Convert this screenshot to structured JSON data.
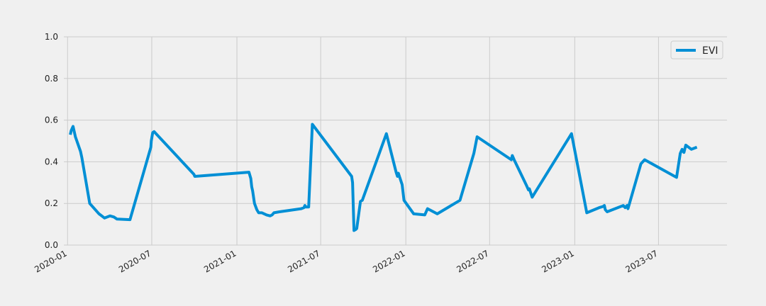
{
  "chart_data": {
    "type": "line",
    "title": "",
    "xlabel": "",
    "ylabel": "",
    "ylim": [
      0.0,
      1.0
    ],
    "xlim": [
      "2019-12-24",
      "2023-11-26"
    ],
    "grid": true,
    "legend_position": "top-right",
    "y_ticks": [
      "0.0",
      "0.2",
      "0.4",
      "0.6",
      "0.8",
      "1.0"
    ],
    "x_ticks": [
      "2020-01",
      "2020-07",
      "2021-01",
      "2021-07",
      "2022-01",
      "2022-07",
      "2023-01",
      "2023-07"
    ],
    "series": [
      {
        "name": "EVI",
        "color": "#008fd5",
        "points": [
          [
            "2020-01-07",
            0.53
          ],
          [
            "2020-01-09",
            0.55
          ],
          [
            "2020-01-13",
            0.57
          ],
          [
            "2020-01-18",
            0.52
          ],
          [
            "2020-01-29",
            0.45
          ],
          [
            "2020-02-01",
            0.42
          ],
          [
            "2020-02-18",
            0.2
          ],
          [
            "2020-03-09",
            0.15
          ],
          [
            "2020-03-21",
            0.13
          ],
          [
            "2020-04-02",
            0.14
          ],
          [
            "2020-04-10",
            0.135
          ],
          [
            "2020-04-17",
            0.125
          ],
          [
            "2020-05-15",
            0.122
          ],
          [
            "2020-06-29",
            0.47
          ],
          [
            "2020-06-30",
            0.5
          ],
          [
            "2020-07-03",
            0.54
          ],
          [
            "2020-07-06",
            0.545
          ],
          [
            "2020-09-30",
            0.34
          ],
          [
            "2020-10-02",
            0.33
          ],
          [
            "2021-01-27",
            0.35
          ],
          [
            "2021-01-31",
            0.32
          ],
          [
            "2021-02-02",
            0.28
          ],
          [
            "2021-02-04",
            0.26
          ],
          [
            "2021-02-08",
            0.2
          ],
          [
            "2021-02-13",
            0.17
          ],
          [
            "2021-02-17",
            0.155
          ],
          [
            "2021-02-24",
            0.155
          ],
          [
            "2021-03-06",
            0.145
          ],
          [
            "2021-03-14",
            0.14
          ],
          [
            "2021-03-18",
            0.145
          ],
          [
            "2021-03-22",
            0.155
          ],
          [
            "2021-04-03",
            0.16
          ],
          [
            "2021-05-20",
            0.175
          ],
          [
            "2021-05-26",
            0.18
          ],
          [
            "2021-05-28",
            0.19
          ],
          [
            "2021-05-30",
            0.183
          ],
          [
            "2021-06-05",
            0.183
          ],
          [
            "2021-06-13",
            0.58
          ],
          [
            "2021-09-06",
            0.33
          ],
          [
            "2021-09-08",
            0.3
          ],
          [
            "2021-09-11",
            0.07
          ],
          [
            "2021-09-15",
            0.075
          ],
          [
            "2021-09-17",
            0.08
          ],
          [
            "2021-09-25",
            0.21
          ],
          [
            "2021-09-29",
            0.215
          ],
          [
            "2021-11-20",
            0.535
          ],
          [
            "2021-12-11",
            0.35
          ],
          [
            "2021-12-14",
            0.33
          ],
          [
            "2021-12-16",
            0.345
          ],
          [
            "2021-12-24",
            0.29
          ],
          [
            "2021-12-28",
            0.215
          ],
          [
            "2022-01-18",
            0.15
          ],
          [
            "2022-02-11",
            0.145
          ],
          [
            "2022-02-17",
            0.175
          ],
          [
            "2022-03-10",
            0.15
          ],
          [
            "2022-04-28",
            0.215
          ],
          [
            "2022-05-28",
            0.44
          ],
          [
            "2022-06-04",
            0.52
          ],
          [
            "2022-08-17",
            0.41
          ],
          [
            "2022-08-19",
            0.43
          ],
          [
            "2022-08-24",
            0.405
          ],
          [
            "2022-09-18",
            0.29
          ],
          [
            "2022-09-23",
            0.265
          ],
          [
            "2022-09-25",
            0.27
          ],
          [
            "2022-10-01",
            0.23
          ],
          [
            "2022-12-25",
            0.535
          ],
          [
            "2023-01-27",
            0.155
          ],
          [
            "2023-02-23",
            0.18
          ],
          [
            "2023-03-03",
            0.185
          ],
          [
            "2023-03-06",
            0.19
          ],
          [
            "2023-03-08",
            0.17
          ],
          [
            "2023-03-12",
            0.16
          ],
          [
            "2023-04-16",
            0.19
          ],
          [
            "2023-04-20",
            0.18
          ],
          [
            "2023-04-24",
            0.19
          ],
          [
            "2023-04-26",
            0.175
          ],
          [
            "2023-05-24",
            0.39
          ],
          [
            "2023-06-01",
            0.41
          ],
          [
            "2023-08-05",
            0.33
          ],
          [
            "2023-08-09",
            0.325
          ],
          [
            "2023-08-17",
            0.44
          ],
          [
            "2023-08-21",
            0.46
          ],
          [
            "2023-08-25",
            0.445
          ],
          [
            "2023-08-29",
            0.48
          ],
          [
            "2023-09-10",
            0.46
          ],
          [
            "2023-09-22",
            0.47
          ]
        ]
      }
    ]
  }
}
